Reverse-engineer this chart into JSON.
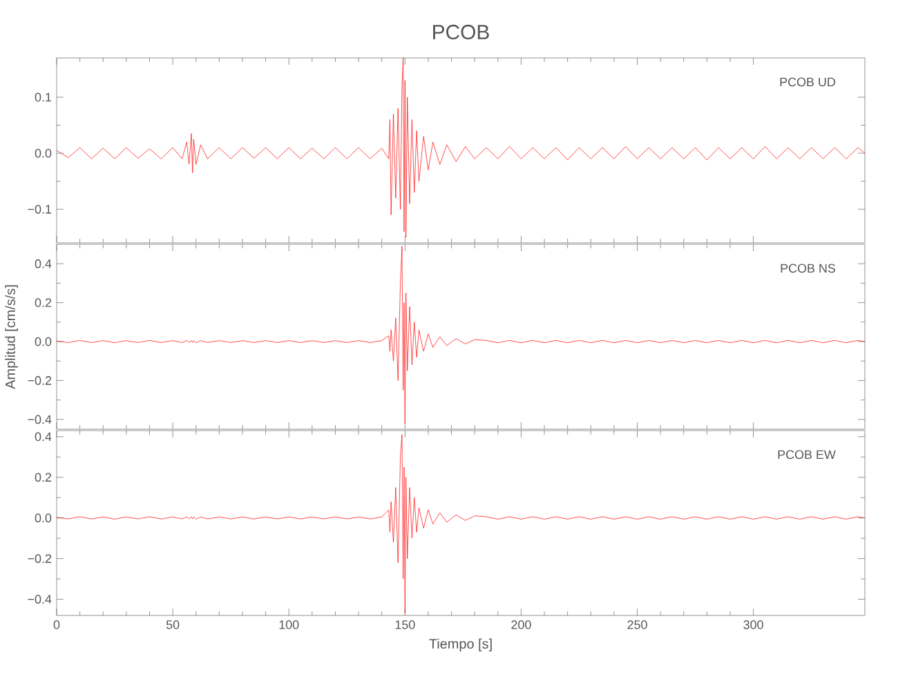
{
  "chart_data": [
    {
      "type": "line",
      "title": "PCOB",
      "annotations": [
        "PCOB UD"
      ],
      "color": "#ff0000",
      "xlim": [
        0,
        348
      ],
      "xticks": [
        0,
        50,
        100,
        150,
        200,
        250,
        300
      ],
      "ylim": [
        -0.16,
        0.17
      ],
      "yticks": [
        {
          "value": -0.1,
          "label": "−0.1"
        },
        {
          "value": 0,
          "label": "0.0"
        },
        0.1
      ],
      "tick_labels": "y",
      "x": [
        0,
        5,
        10,
        15,
        20,
        25,
        30,
        35,
        40,
        45,
        50,
        54,
        56,
        57,
        58,
        58.5,
        59,
        60,
        62,
        65,
        70,
        75,
        80,
        85,
        90,
        95,
        100,
        105,
        110,
        115,
        120,
        125,
        130,
        135,
        140,
        143,
        143.5,
        144,
        145,
        146,
        147,
        148,
        148.7,
        149.2,
        149.6,
        150,
        150.4,
        151,
        152,
        153,
        154,
        155,
        156,
        158,
        160,
        162,
        165,
        168,
        172,
        176,
        180,
        185,
        190,
        195,
        200,
        205,
        210,
        215,
        220,
        225,
        230,
        235,
        240,
        245,
        250,
        255,
        260,
        265,
        270,
        275,
        280,
        285,
        290,
        295,
        300,
        305,
        310,
        315,
        320,
        325,
        330,
        335,
        340,
        345,
        348
      ],
      "values": [
        0.005,
        -0.008,
        0.01,
        -0.01,
        0.009,
        -0.01,
        0.01,
        -0.009,
        0.008,
        -0.01,
        0.01,
        -0.01,
        0.02,
        -0.02,
        0.035,
        -0.035,
        0.025,
        -0.02,
        0.015,
        -0.01,
        0.01,
        -0.01,
        0.01,
        -0.009,
        0.01,
        -0.01,
        0.01,
        -0.01,
        0.009,
        -0.01,
        0.01,
        -0.01,
        0.01,
        -0.01,
        0.009,
        -0.01,
        0.06,
        -0.11,
        0.07,
        -0.08,
        0.08,
        -0.1,
        0.12,
        0.17,
        -0.14,
        0.13,
        -0.15,
        0.1,
        -0.09,
        0.06,
        -0.07,
        0.04,
        -0.05,
        0.03,
        -0.03,
        0.02,
        -0.02,
        0.015,
        -0.015,
        0.012,
        -0.01,
        0.01,
        -0.01,
        0.012,
        -0.01,
        0.01,
        -0.01,
        0.01,
        -0.012,
        0.01,
        -0.01,
        0.01,
        -0.01,
        0.012,
        -0.01,
        0.01,
        -0.01,
        0.01,
        -0.01,
        0.01,
        -0.012,
        0.01,
        -0.01,
        0.01,
        -0.01,
        0.012,
        -0.01,
        0.01,
        -0.01,
        0.01,
        -0.01,
        0.01,
        -0.01,
        0.01,
        0.0
      ]
    },
    {
      "type": "line",
      "ylabel": "Amplitud [cm/s/s]",
      "annotations": [
        "PCOB NS"
      ],
      "color": "#ff0000",
      "xlim": [
        0,
        348
      ],
      "xticks": [
        0,
        50,
        100,
        150,
        200,
        250,
        300
      ],
      "ylim": [
        -0.45,
        0.5
      ],
      "yticks": [
        {
          "value": -0.4,
          "label": "−0.4"
        },
        {
          "value": -0.2,
          "label": "−0.2"
        },
        {
          "value": 0,
          "label": "0.0"
        },
        0.2,
        0.4
      ],
      "tick_labels": "y",
      "x": [
        0,
        5,
        10,
        15,
        20,
        25,
        30,
        35,
        40,
        45,
        50,
        54,
        56,
        57,
        58,
        58.5,
        59,
        60,
        62,
        65,
        70,
        75,
        80,
        85,
        90,
        95,
        100,
        105,
        110,
        115,
        120,
        125,
        130,
        135,
        140,
        143,
        143.5,
        144,
        145,
        146,
        147,
        148,
        148.7,
        149.2,
        149.6,
        150,
        150.4,
        151,
        152,
        153,
        154,
        155,
        156,
        158,
        160,
        162,
        165,
        168,
        172,
        176,
        180,
        185,
        190,
        195,
        200,
        205,
        210,
        215,
        220,
        225,
        230,
        235,
        240,
        245,
        250,
        255,
        260,
        265,
        270,
        275,
        280,
        285,
        290,
        295,
        300,
        305,
        310,
        315,
        320,
        325,
        330,
        335,
        340,
        345,
        348
      ],
      "values": [
        0.003,
        -0.005,
        0.006,
        -0.005,
        0.005,
        -0.006,
        0.005,
        -0.005,
        0.006,
        -0.005,
        0.005,
        -0.005,
        0.006,
        -0.005,
        0.006,
        -0.005,
        0.005,
        -0.006,
        0.005,
        -0.005,
        0.005,
        -0.005,
        0.005,
        -0.005,
        0.005,
        -0.005,
        0.005,
        -0.005,
        0.005,
        -0.005,
        0.005,
        -0.005,
        0.005,
        -0.005,
        0.005,
        0.03,
        -0.05,
        0.06,
        -0.1,
        0.12,
        -0.2,
        0.3,
        0.49,
        -0.25,
        0.2,
        -0.42,
        0.25,
        -0.15,
        0.18,
        -0.12,
        0.1,
        -0.08,
        0.06,
        -0.05,
        0.04,
        -0.03,
        0.025,
        -0.02,
        0.015,
        -0.012,
        0.01,
        0.006,
        -0.006,
        0.006,
        -0.006,
        0.006,
        -0.006,
        0.006,
        -0.006,
        0.006,
        -0.006,
        0.006,
        -0.006,
        0.006,
        -0.006,
        0.006,
        -0.006,
        0.006,
        -0.006,
        0.006,
        -0.006,
        0.006,
        -0.006,
        0.006,
        -0.006,
        0.006,
        -0.006,
        0.006,
        -0.006,
        0.006,
        -0.006,
        0.006,
        -0.006,
        0.006,
        0.0
      ]
    },
    {
      "type": "line",
      "xlabel": "Tiempo [s]",
      "annotations": [
        "PCOB EW"
      ],
      "color": "#ff0000",
      "xlim": [
        0,
        348
      ],
      "xticks": [
        0,
        50,
        100,
        150,
        200,
        250,
        300
      ],
      "ylim": [
        -0.48,
        0.43
      ],
      "yticks": [
        {
          "value": -0.4,
          "label": "−0.4"
        },
        {
          "value": -0.2,
          "label": "−0.2"
        },
        {
          "value": 0,
          "label": "0.0"
        },
        0.2,
        0.4
      ],
      "x": [
        0,
        5,
        10,
        15,
        20,
        25,
        30,
        35,
        40,
        45,
        50,
        54,
        56,
        57,
        58,
        58.5,
        59,
        60,
        62,
        65,
        70,
        75,
        80,
        85,
        90,
        95,
        100,
        105,
        110,
        115,
        120,
        125,
        130,
        135,
        140,
        143,
        143.5,
        144,
        145,
        146,
        147,
        148,
        148.7,
        149.2,
        149.6,
        150,
        150.4,
        151,
        152,
        153,
        154,
        155,
        156,
        158,
        160,
        162,
        165,
        168,
        172,
        176,
        180,
        185,
        190,
        195,
        200,
        205,
        210,
        215,
        220,
        225,
        230,
        235,
        240,
        245,
        250,
        255,
        260,
        265,
        270,
        275,
        280,
        285,
        290,
        295,
        300,
        305,
        310,
        315,
        320,
        325,
        330,
        335,
        340,
        345,
        348
      ],
      "values": [
        0.003,
        -0.005,
        0.006,
        -0.005,
        0.005,
        -0.006,
        0.005,
        -0.005,
        0.006,
        -0.005,
        0.005,
        -0.005,
        0.006,
        -0.005,
        0.006,
        -0.005,
        0.005,
        -0.006,
        0.005,
        -0.005,
        0.005,
        -0.005,
        0.005,
        -0.005,
        0.005,
        -0.005,
        0.005,
        -0.005,
        0.005,
        -0.005,
        0.005,
        -0.005,
        0.005,
        -0.005,
        0.005,
        0.04,
        -0.07,
        0.08,
        -0.12,
        0.15,
        -0.22,
        0.3,
        0.41,
        -0.3,
        0.25,
        -0.47,
        0.2,
        -0.2,
        0.15,
        -0.1,
        0.1,
        -0.07,
        0.05,
        -0.05,
        0.04,
        -0.03,
        0.025,
        -0.02,
        0.015,
        -0.012,
        0.01,
        0.006,
        -0.006,
        0.006,
        -0.006,
        0.006,
        -0.006,
        0.006,
        -0.006,
        0.006,
        -0.006,
        0.006,
        -0.006,
        0.006,
        -0.006,
        0.006,
        -0.006,
        0.006,
        -0.006,
        0.006,
        -0.006,
        0.006,
        -0.006,
        0.006,
        -0.006,
        0.006,
        -0.006,
        0.006,
        -0.006,
        0.006,
        -0.006,
        0.006,
        -0.006,
        0.006,
        0.0
      ]
    }
  ]
}
